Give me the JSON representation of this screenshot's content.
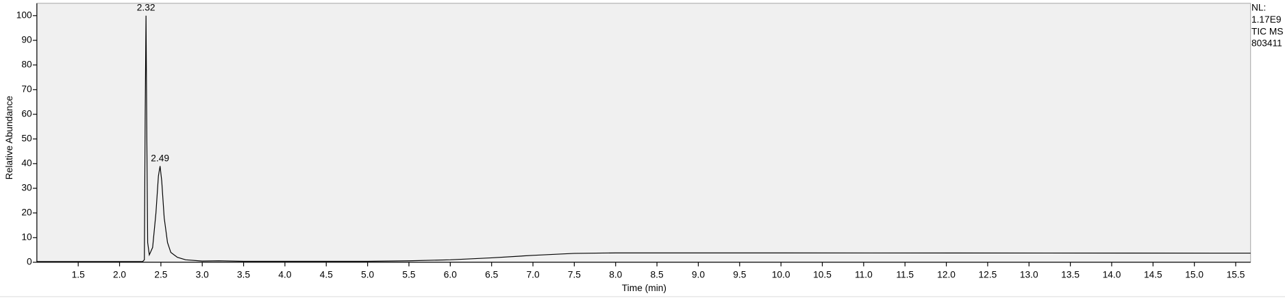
{
  "chart_data": {
    "type": "line",
    "xlabel": "Time (min)",
    "ylabel": "Relative Abundance",
    "x": [
      1.0,
      2.28,
      2.3,
      2.31,
      2.32,
      2.33,
      2.34,
      2.36,
      2.4,
      2.44,
      2.47,
      2.49,
      2.51,
      2.54,
      2.58,
      2.62,
      2.7,
      2.8,
      3.0,
      3.2,
      3.5,
      4.0,
      5.0,
      5.5,
      6.0,
      6.5,
      7.0,
      7.5,
      8.0,
      10.0,
      15.68
    ],
    "values": [
      0.3,
      0.3,
      1,
      60,
      100,
      50,
      8,
      3,
      6,
      20,
      35,
      39,
      33,
      18,
      8,
      4,
      2,
      1,
      0.5,
      0.6,
      0.4,
      0.4,
      0.4,
      0.6,
      1.0,
      1.8,
      2.8,
      3.6,
      3.8,
      3.8,
      3.7
    ],
    "color": "#000000",
    "xlim": [
      1.0,
      15.68
    ],
    "ylim": [
      0,
      105
    ],
    "xticks": [
      {
        "value": 1.5,
        "label": "1.5"
      },
      {
        "value": 2,
        "label": "2.0"
      },
      {
        "value": 2.5,
        "label": "2.5"
      },
      {
        "value": 3,
        "label": "3.0"
      },
      {
        "value": 3.5,
        "label": "3.5"
      },
      {
        "value": 4,
        "label": "4.0"
      },
      {
        "value": 4.5,
        "label": "4.5"
      },
      {
        "value": 5,
        "label": "5.0"
      },
      {
        "value": 5.5,
        "label": "5.5"
      },
      {
        "value": 6,
        "label": "6.0"
      },
      {
        "value": 6.5,
        "label": "6.5"
      },
      {
        "value": 7,
        "label": "7.0"
      },
      {
        "value": 7.5,
        "label": "7.5"
      },
      {
        "value": 8,
        "label": "8.0"
      },
      {
        "value": 8.5,
        "label": "8.5"
      },
      {
        "value": 9,
        "label": "9.0"
      },
      {
        "value": 9.5,
        "label": "9.5"
      },
      {
        "value": 10,
        "label": "10.0"
      },
      {
        "value": 10.5,
        "label": "10.5"
      },
      {
        "value": 11,
        "label": "11.0"
      },
      {
        "value": 11.5,
        "label": "11.5"
      },
      {
        "value": 12,
        "label": "12.0"
      },
      {
        "value": 12.5,
        "label": "12.5"
      },
      {
        "value": 13,
        "label": "13.0"
      },
      {
        "value": 13.5,
        "label": "13.5"
      },
      {
        "value": 14,
        "label": "14.0"
      },
      {
        "value": 14.5,
        "label": "14.5"
      },
      {
        "value": 15,
        "label": "15.0"
      },
      {
        "value": 15.5,
        "label": "15.5"
      }
    ],
    "yticks": [
      0,
      10,
      20,
      30,
      40,
      50,
      60,
      70,
      80,
      90,
      100
    ],
    "annotations": [
      {
        "text": "2.32",
        "x": 2.32,
        "y": 100
      },
      {
        "text": "2.49",
        "x": 2.49,
        "y": 39
      }
    ],
    "info": [
      "NL:",
      "1.17E9",
      "TIC  MS",
      "803411"
    ]
  }
}
